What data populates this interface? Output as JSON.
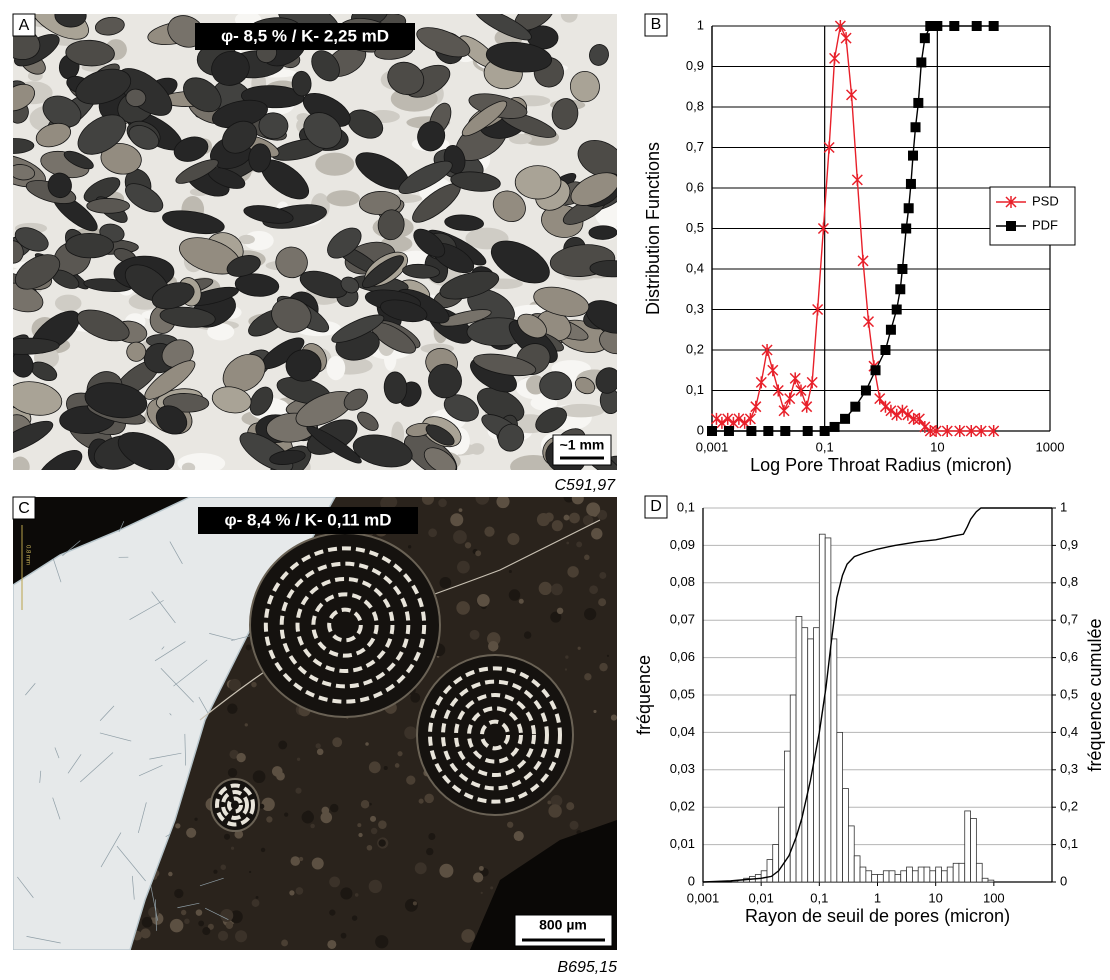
{
  "panels": [
    {
      "label": "A",
      "annotation": "φ- 8,5 % / K- 2,25 mD",
      "scale_bar": "~1 mm",
      "sample": "C591,97"
    },
    {
      "label": "C",
      "annotation": "φ- 8,4 % / K- 0,11 mD",
      "scale_bar": "800 µm",
      "scale_note": "0.8 mm",
      "sample": "B695,15"
    }
  ],
  "chart_data": [
    {
      "type": "line",
      "label": "B",
      "xlabel": "Log Pore Throat Radius (micron)",
      "ylabel": "Distribution Functions",
      "xscale": "log",
      "xlim": [
        0.001,
        1000
      ],
      "ylim": [
        0,
        1
      ],
      "xticks": [
        {
          "value": 0.001,
          "label": "0,001"
        },
        {
          "value": 0.1,
          "label": "0,1"
        },
        10,
        1000
      ],
      "yticks": [
        0,
        {
          "value": 0.1,
          "label": "0,1"
        },
        {
          "value": 0.2,
          "label": "0,2"
        },
        {
          "value": 0.3,
          "label": "0,3"
        },
        {
          "value": 0.4,
          "label": "0,4"
        },
        {
          "value": 0.5,
          "label": "0,5"
        },
        {
          "value": 0.6,
          "label": "0,6"
        },
        {
          "value": 0.7,
          "label": "0,7"
        },
        {
          "value": 0.8,
          "label": "0,8"
        },
        {
          "value": 0.9,
          "label": "0,9"
        },
        1
      ],
      "grid": "both",
      "grid_color": "#000000",
      "legend": "right",
      "series": [
        {
          "name": "PSD",
          "color": "#e8202a",
          "marker": "asterisk",
          "x": [
            0.0012,
            0.0015,
            0.0019,
            0.0024,
            0.003,
            0.0038,
            0.0048,
            0.006,
            0.0075,
            0.0095,
            0.012,
            0.015,
            0.019,
            0.024,
            0.03,
            0.038,
            0.048,
            0.06,
            0.075,
            0.095,
            0.12,
            0.15,
            0.19,
            0.24,
            0.3,
            0.38,
            0.48,
            0.6,
            0.75,
            0.95,
            1.2,
            1.5,
            1.9,
            2.4,
            3,
            3.8,
            4.8,
            6,
            7.5,
            9.5,
            15,
            25,
            40,
            60,
            100
          ],
          "values": [
            0.03,
            0.02,
            0.03,
            0.02,
            0.03,
            0.02,
            0.03,
            0.06,
            0.12,
            0.2,
            0.15,
            0.1,
            0.05,
            0.08,
            0.13,
            0.1,
            0.06,
            0.12,
            0.3,
            0.5,
            0.7,
            0.92,
            1.0,
            0.97,
            0.83,
            0.62,
            0.42,
            0.27,
            0.16,
            0.08,
            0.06,
            0.05,
            0.04,
            0.05,
            0.04,
            0.03,
            0.03,
            0.01,
            0,
            0,
            0,
            0,
            0,
            0,
            0
          ]
        },
        {
          "name": "PDF",
          "color": "#000000",
          "marker": "square",
          "x": [
            0.001,
            0.002,
            0.005,
            0.01,
            0.02,
            0.05,
            0.1,
            0.15,
            0.23,
            0.35,
            0.54,
            0.8,
            1.2,
            1.5,
            1.9,
            2.2,
            2.4,
            2.8,
            3.1,
            3.4,
            3.7,
            4.1,
            4.6,
            5.2,
            6,
            7.5,
            10,
            20,
            50,
            100
          ],
          "values": [
            0,
            0,
            0,
            0,
            0,
            0,
            0,
            0.01,
            0.03,
            0.06,
            0.1,
            0.15,
            0.2,
            0.25,
            0.3,
            0.35,
            0.4,
            0.5,
            0.55,
            0.61,
            0.68,
            0.75,
            0.81,
            0.91,
            0.97,
            1,
            1,
            1,
            1,
            1
          ]
        }
      ]
    },
    {
      "type": "histogram",
      "label": "D",
      "xlabel": "Rayon de seuil de pores (micron)",
      "ylabel": "fréquence",
      "y2label": "fréquence cumulée",
      "xscale": "log",
      "xlim": [
        0.001,
        1000
      ],
      "ylim": [
        0,
        0.1
      ],
      "y2lim": [
        0,
        1
      ],
      "xticks": [
        {
          "value": 0.001,
          "label": "0,001"
        },
        {
          "value": 0.01,
          "label": "0,01"
        },
        {
          "value": 0.1,
          "label": "0,1"
        },
        1,
        10,
        100
      ],
      "yticks": [
        0,
        {
          "value": 0.01,
          "label": "0,01"
        },
        {
          "value": 0.02,
          "label": "0,02"
        },
        {
          "value": 0.03,
          "label": "0,03"
        },
        {
          "value": 0.04,
          "label": "0,04"
        },
        {
          "value": 0.05,
          "label": "0,05"
        },
        {
          "value": 0.06,
          "label": "0,06"
        },
        {
          "value": 0.07,
          "label": "0,07"
        },
        {
          "value": 0.08,
          "label": "0,08"
        },
        {
          "value": 0.09,
          "label": "0,09"
        },
        {
          "value": 0.1,
          "label": "0,1"
        }
      ],
      "y2ticks": [
        0,
        {
          "value": 0.1,
          "label": "0,1"
        },
        {
          "value": 0.2,
          "label": "0,2"
        },
        {
          "value": 0.3,
          "label": "0,3"
        },
        {
          "value": 0.4,
          "label": "0,4"
        },
        {
          "value": 0.5,
          "label": "0,5"
        },
        {
          "value": 0.6,
          "label": "0,6"
        },
        {
          "value": 0.7,
          "label": "0,7"
        },
        {
          "value": 0.8,
          "label": "0,8"
        },
        {
          "value": 0.9,
          "label": "0,9"
        },
        1
      ],
      "grid": "y",
      "grid_color": "#b5b5b5",
      "color": "#ffffff",
      "edge_color": "#333333",
      "bins": [
        0.00316,
        0.00398,
        0.00501,
        0.00631,
        0.00794,
        0.01,
        0.0126,
        0.0158,
        0.02,
        0.0251,
        0.0316,
        0.0398,
        0.0501,
        0.0631,
        0.0794,
        0.1,
        0.126,
        0.158,
        0.2,
        0.251,
        0.316,
        0.398,
        0.501,
        0.631,
        0.794,
        1,
        1.26,
        1.58,
        2,
        2.51,
        3.16,
        3.98,
        5.01,
        6.31,
        7.94,
        10,
        12.6,
        15.8,
        20,
        25.1,
        31.6,
        39.8,
        50.1,
        63.1,
        79.4,
        100
      ],
      "values": [
        0.0003,
        0.0005,
        0.001,
        0.0015,
        0.002,
        0.003,
        0.006,
        0.01,
        0.02,
        0.035,
        0.05,
        0.071,
        0.068,
        0.065,
        0.068,
        0.093,
        0.092,
        0.065,
        0.04,
        0.025,
        0.015,
        0.007,
        0.004,
        0.003,
        0.002,
        0.002,
        0.003,
        0.003,
        0.002,
        0.003,
        0.004,
        0.003,
        0.004,
        0.004,
        0.003,
        0.004,
        0.003,
        0.004,
        0.005,
        0.005,
        0.019,
        0.017,
        0.005,
        0.001,
        0.0005
      ],
      "series": [
        {
          "color": "#000000",
          "axis": "y2",
          "x": [
            0.001,
            0.003,
            0.006,
            0.01,
            0.015,
            0.02,
            0.03,
            0.04,
            0.05,
            0.07,
            0.1,
            0.13,
            0.16,
            0.2,
            0.25,
            0.3,
            0.4,
            0.6,
            1,
            2,
            5,
            10,
            20,
            30,
            35,
            40,
            50,
            60,
            1000
          ],
          "values": [
            0,
            0.003,
            0.007,
            0.01,
            0.015,
            0.03,
            0.07,
            0.12,
            0.17,
            0.27,
            0.4,
            0.52,
            0.64,
            0.76,
            0.82,
            0.85,
            0.87,
            0.88,
            0.89,
            0.9,
            0.91,
            0.915,
            0.925,
            0.93,
            0.95,
            0.97,
            0.99,
            1,
            1
          ]
        }
      ]
    }
  ]
}
